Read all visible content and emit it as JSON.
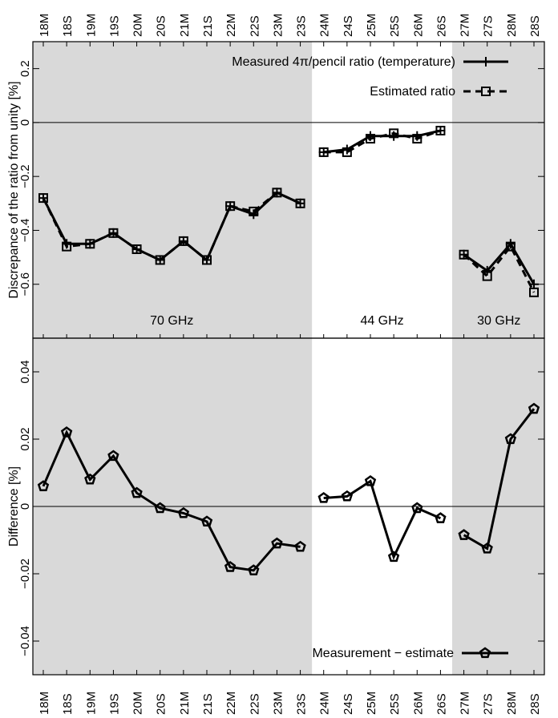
{
  "chart_data": [
    {
      "type": "line",
      "ylabel": "Discrepance of the ratio from unity [%]",
      "ylim": [
        -0.8,
        0.3
      ],
      "yticks": [
        0.2,
        0,
        -0.2,
        -0.4,
        -0.6
      ],
      "ytick_labels": [
        "0.2",
        "0",
        "−0.2",
        "−0.4",
        "−0.6"
      ],
      "reference_line": 0,
      "bands": [
        {
          "label": "70 GHz",
          "from": "18M",
          "to": "23S",
          "shaded": true
        },
        {
          "label": "44 GHz",
          "from": "24M",
          "to": "26S",
          "shaded": false
        },
        {
          "label": "30 GHz",
          "from": "27M",
          "to": "28S",
          "shaded": true
        }
      ],
      "legend_position": "top-right",
      "series": [
        {
          "name": "Measured 4π/pencil ratio (temperature)",
          "style": "solid",
          "marker": "plus",
          "segments": [
            [
              -0.28,
              -0.45,
              -0.45,
              -0.41,
              -0.47,
              -0.51,
              -0.44,
              -0.51,
              -0.31,
              -0.34,
              -0.26,
              -0.3
            ],
            [
              -0.11,
              -0.1,
              -0.05,
              -0.05,
              -0.05,
              -0.03
            ],
            [
              -0.49,
              -0.55,
              -0.45,
              -0.6
            ]
          ]
        },
        {
          "name": "Estimated ratio",
          "style": "dashed",
          "marker": "square",
          "segments": [
            [
              -0.28,
              -0.46,
              -0.45,
              -0.41,
              -0.47,
              -0.51,
              -0.44,
              -0.51,
              -0.31,
              -0.33,
              -0.26,
              -0.3
            ],
            [
              -0.11,
              -0.11,
              -0.06,
              -0.04,
              -0.06,
              -0.03
            ],
            [
              -0.49,
              -0.57,
              -0.46,
              -0.63
            ]
          ]
        }
      ]
    },
    {
      "type": "line",
      "ylabel": "Difference [%]",
      "ylim": [
        -0.05,
        0.05
      ],
      "yticks": [
        0.04,
        0.02,
        0,
        -0.02,
        -0.04
      ],
      "ytick_labels": [
        "0.04",
        "0.02",
        "0",
        "−0.02",
        "−0.04"
      ],
      "reference_line": 0,
      "legend_position": "bottom-right",
      "series": [
        {
          "name": "Measurement − estimate",
          "style": "solid",
          "marker": "pentagon",
          "segments": [
            [
              0.006,
              0.022,
              0.008,
              0.015,
              0.004,
              -0.0005,
              -0.002,
              -0.0045,
              -0.018,
              -0.019,
              -0.011,
              -0.012
            ],
            [
              0.0025,
              0.003,
              0.0075,
              -0.015,
              -0.0005,
              -0.0035
            ],
            [
              -0.0085,
              -0.0125,
              0.02,
              0.029
            ]
          ]
        }
      ]
    }
  ],
  "categories": [
    "18M",
    "18S",
    "19M",
    "19S",
    "20M",
    "20S",
    "21M",
    "21S",
    "22M",
    "22S",
    "23M",
    "23S",
    "24M",
    "24S",
    "25M",
    "25S",
    "26M",
    "26S",
    "27M",
    "27S",
    "28M",
    "28S"
  ],
  "colors": {
    "band_shaded": "#d9d9d9",
    "line": "#000000"
  }
}
